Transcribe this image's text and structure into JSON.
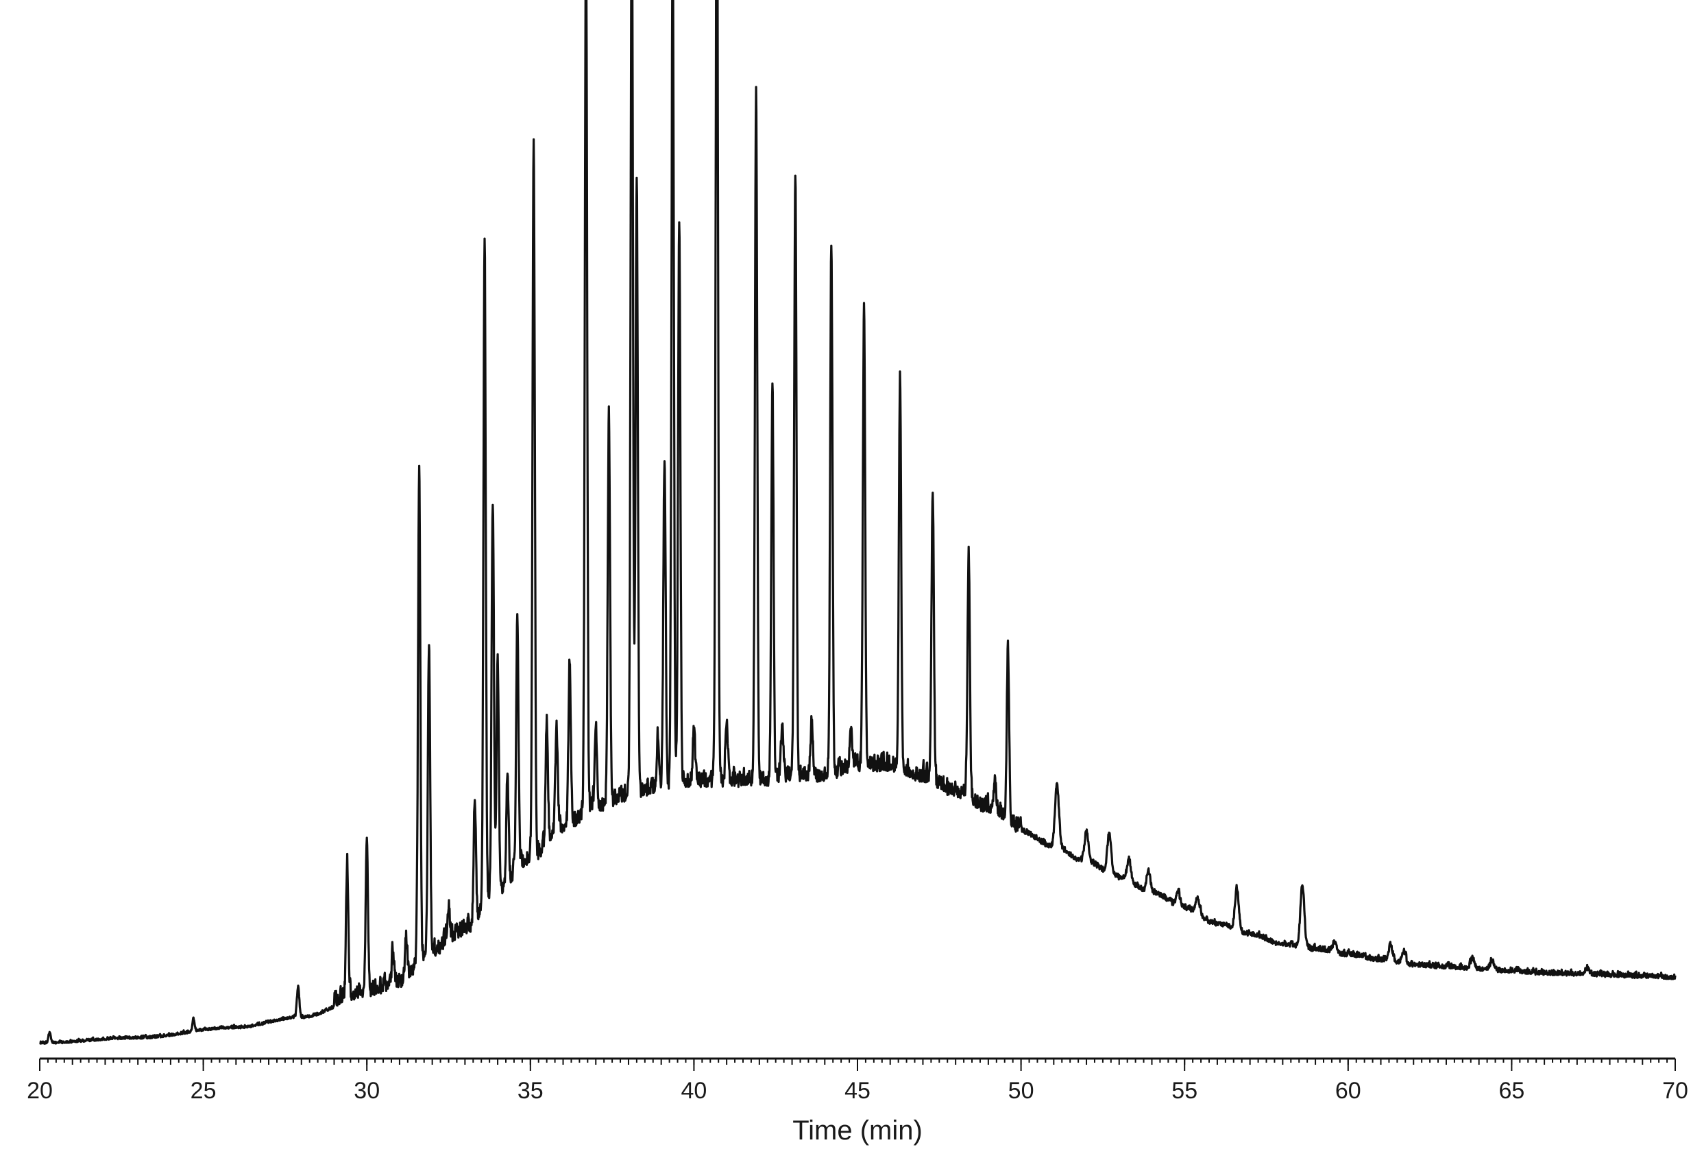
{
  "chart_data": {
    "type": "line",
    "title": "",
    "xlabel": "Time (min)",
    "ylabel": "",
    "xlim": [
      20,
      70
    ],
    "ylim": [
      0,
      1
    ],
    "x_ticks": [
      20,
      25,
      30,
      35,
      40,
      45,
      50,
      55,
      60,
      65,
      70
    ],
    "x_tick_labels": [
      "20",
      "25",
      "30",
      "35",
      "40",
      "45",
      "50",
      "55",
      "60",
      "65",
      "70"
    ],
    "minor_tick_step": 0.25,
    "grid": false,
    "legend": "none",
    "line_color": "#111111",
    "series": [
      {
        "baseline": [
          [
            20,
            0.005
          ],
          [
            23,
            0.01
          ],
          [
            26,
            0.02
          ],
          [
            28,
            0.03
          ],
          [
            30,
            0.05
          ],
          [
            31,
            0.06
          ],
          [
            32,
            0.09
          ],
          [
            33,
            0.11
          ],
          [
            34,
            0.15
          ],
          [
            35,
            0.18
          ],
          [
            36,
            0.21
          ],
          [
            37,
            0.23
          ],
          [
            38,
            0.24
          ],
          [
            39,
            0.25
          ],
          [
            40,
            0.255
          ],
          [
            41,
            0.255
          ],
          [
            42,
            0.255
          ],
          [
            43,
            0.26
          ],
          [
            44,
            0.26
          ],
          [
            45,
            0.27
          ],
          [
            46,
            0.27
          ],
          [
            47,
            0.26
          ],
          [
            48,
            0.245
          ],
          [
            49,
            0.23
          ],
          [
            50,
            0.21
          ],
          [
            51,
            0.195
          ],
          [
            52,
            0.18
          ],
          [
            53,
            0.165
          ],
          [
            54,
            0.15
          ],
          [
            55,
            0.135
          ],
          [
            56,
            0.12
          ],
          [
            57,
            0.11
          ],
          [
            58,
            0.1
          ],
          [
            59,
            0.095
          ],
          [
            60,
            0.09
          ],
          [
            61,
            0.085
          ],
          [
            62,
            0.08
          ],
          [
            63,
            0.078
          ],
          [
            64,
            0.076
          ],
          [
            65,
            0.074
          ],
          [
            66,
            0.072
          ],
          [
            67,
            0.071
          ],
          [
            68,
            0.07
          ],
          [
            69,
            0.069
          ],
          [
            70,
            0.068
          ]
        ],
        "peaks": [
          [
            20.3,
            0.01
          ],
          [
            24.7,
            0.012
          ],
          [
            27.9,
            0.03
          ],
          [
            29.4,
            0.13
          ],
          [
            30.0,
            0.15
          ],
          [
            30.8,
            0.03
          ],
          [
            31.2,
            0.04
          ],
          [
            31.6,
            0.48
          ],
          [
            31.9,
            0.3
          ],
          [
            32.5,
            0.03
          ],
          [
            33.3,
            0.12
          ],
          [
            33.6,
            0.65
          ],
          [
            33.85,
            0.38
          ],
          [
            34.0,
            0.22
          ],
          [
            34.3,
            0.1
          ],
          [
            34.6,
            0.25
          ],
          [
            35.1,
            0.7
          ],
          [
            35.5,
            0.12
          ],
          [
            35.8,
            0.1
          ],
          [
            36.2,
            0.16
          ],
          [
            36.7,
            0.86
          ],
          [
            37.0,
            0.08
          ],
          [
            37.4,
            0.38
          ],
          [
            38.1,
            0.9
          ],
          [
            38.25,
            0.6
          ],
          [
            38.9,
            0.05
          ],
          [
            39.1,
            0.32
          ],
          [
            39.35,
            0.84
          ],
          [
            39.55,
            0.55
          ],
          [
            40.0,
            0.05
          ],
          [
            40.7,
            0.96
          ],
          [
            41.0,
            0.06
          ],
          [
            41.9,
            0.67
          ],
          [
            42.4,
            0.38
          ],
          [
            42.7,
            0.05
          ],
          [
            43.1,
            0.59
          ],
          [
            43.6,
            0.05
          ],
          [
            44.2,
            0.52
          ],
          [
            44.8,
            0.04
          ],
          [
            45.2,
            0.45
          ],
          [
            46.3,
            0.38
          ],
          [
            47.3,
            0.28
          ],
          [
            48.4,
            0.24
          ],
          [
            49.2,
            0.03
          ],
          [
            49.6,
            0.17
          ],
          [
            51.1,
            0.06
          ],
          [
            52.0,
            0.03
          ],
          [
            52.7,
            0.04
          ],
          [
            53.3,
            0.02
          ],
          [
            53.9,
            0.02
          ],
          [
            54.8,
            0.015
          ],
          [
            55.4,
            0.015
          ],
          [
            56.6,
            0.04
          ],
          [
            58.6,
            0.06
          ],
          [
            59.6,
            0.01
          ],
          [
            61.3,
            0.015
          ],
          [
            61.7,
            0.012
          ],
          [
            63.8,
            0.01
          ],
          [
            64.4,
            0.008
          ],
          [
            67.3,
            0.006
          ]
        ]
      }
    ]
  }
}
